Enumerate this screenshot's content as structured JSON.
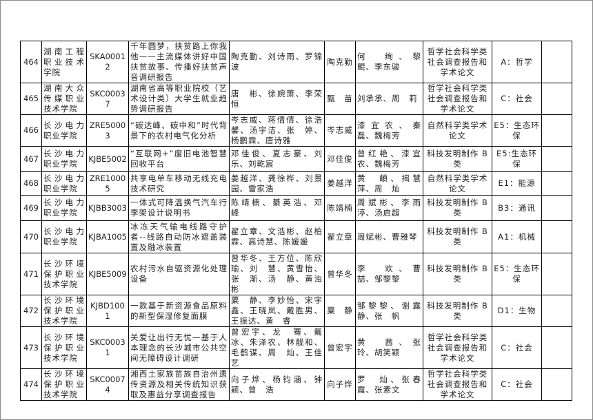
{
  "rows": [
    {
      "no": "464",
      "school": "湖南工程职业技术学院",
      "code": "SKA00012",
      "title": "千年圆梦，扶贫路上你我他——主流媒体讲好中国扶贫故事、传播好扶贫声音调研报告",
      "members": "陶克勤、刘诗雨、罗锦波",
      "leader": "陶克勤",
      "advisors": "何　绚、黎　鲲、李东骏",
      "category": "哲学社会科学类社会调查报告和学术论文",
      "subject": "A：哲学",
      "note": ""
    },
    {
      "no": "465",
      "school": "湖南大众传媒职业技术学院",
      "code": "SKC00037",
      "title": "湖南省高等职业院校（艺术设计类）大学生就业趋势调研报告",
      "members": "唐　彬、徐婉箫、李荣恒",
      "leader": "甄　苗",
      "advisors": "刘承承、周　莉",
      "category": "哲学社会科学类社会调查报告和学术论文",
      "subject": "C：社会",
      "note": ""
    },
    {
      "no": "466",
      "school": "长沙电力职业学院",
      "code": "ZRE50003",
      "title": "“碳达峰、碳中和”时代背景下的农村电气化分析",
      "members": "岑志威、蒋倩倩、徐浩馨、汤宇洁、张　婷、杨鹏霖、唐诗雅",
      "leader": "岑志威",
      "advisors": "漆宜农、秦　磊、魏梅芳",
      "category": "自然科学类学术论文",
      "subject": "E5：生态环保",
      "note": ""
    },
    {
      "no": "467",
      "school": "长沙电力职业学院",
      "code": "KJBE5002",
      "title": "“互联网+”废旧电池智慧回收平台",
      "members": "邓佳俊、夏志豪、刘　乐、刘乾宸",
      "leader": "邓佳俊",
      "advisors": "曾红艳、漆宜农、魏梅芳",
      "category": "科技发明制作 B 类",
      "subject": "E5:生态环保",
      "note": ""
    },
    {
      "no": "468",
      "school": "长沙电力职业学院",
      "code": "ZRE10005",
      "title": "共享电单车移动无线充电技术研究",
      "members": "姜越洋、龚徐桦、刘景园、雷家浩",
      "leader": "姜越洋",
      "advisors": "黄　頔、揭慧萍、周　灿",
      "category": "自然科学类学术论文",
      "subject": "E1：能源",
      "note": ""
    },
    {
      "no": "469",
      "school": "长沙电力职业学院",
      "code": "KJBB3003",
      "title": "一体式可降温换气汽车行李架设计说明书",
      "members": "陈靖楠、綦英浩、邓　峰",
      "leader": "陈靖楠",
      "advisors": "周斌彬、李雨渟、汤启超",
      "category": "科技发明制作 B 类",
      "subject": "B3：通讯",
      "note": ""
    },
    {
      "no": "470",
      "school": "长沙电力职业学院",
      "code": "KJBA1005",
      "title": "冰冻天气输电线路守护者--线路自动防冰遮盖装置及融冰装置",
      "members": "翟立章、文浩彬、赵柏霖、高诗慧、陈媛媛",
      "leader": "翟立章",
      "advisors": "周斌彬、曹雅琴",
      "category": "科技发明制作 B 类",
      "subject": "A1：机械",
      "note": ""
    },
    {
      "no": "471",
      "school": "长沙环境保护职业技术学院",
      "code": "KJBE5009",
      "title": "农村污水自驱资源化处理设备",
      "members": "曾华冬、王方位、陈欣瑜、刘　慧、黄雪怡、张　渐、汤　静、黄浊彬",
      "leader": "曾华冬",
      "advisors": "李　欢、曹　喆、邹黎黎",
      "category": "科技发明制作 B 类",
      "subject": "E5：生态环保",
      "note": ""
    },
    {
      "no": "472",
      "school": "长沙环境保护职业技术学院",
      "code": "KJBD1001",
      "title": "一款基于新资源食品原料的新型保湿修复面膜",
      "members": "粟　静、李妙怡、宋宇鑫、王晓岚、戴胜男、王振达、黄　睿",
      "leader": "粟　静",
      "advisors": "邹黎黎、谢露静、张　帆",
      "category": "科技发明制作 B 类",
      "subject": "D1：生物",
      "note": ""
    },
    {
      "no": "473",
      "school": "长沙环境保护职业技术学院",
      "code": "SKC00031",
      "title": "关爱让出行无忧—基于人本理念的长沙城市公共空间无障碍设计调研",
      "members": "曾宏宇、龙　骞、戴　冰、朱泽农、林靓和、毛鹤谋、周　灿、王佳艺",
      "leader": "曾宏宇",
      "advisors": "黄　茜、张　玲、胡笑颖",
      "category": "哲学社会科学类社会调查报告和学术论文",
      "subject": "C：社会",
      "note": ""
    },
    {
      "no": "474",
      "school": "长沙环境保护职业技术学院",
      "code": "SKC00074",
      "title": "湘西土家族苗族自治州遗传资源及相关传统知识获取及惠益分享调查报告",
      "members": "向子烨、杨钧涵、钟　颖、曾　浩",
      "leader": "向子烨",
      "advisors": "罗　灿、张春霞、张素文",
      "category": "哲学社会科学类社会调查报告和学术论文",
      "subject": "C：社会",
      "note": ""
    }
  ]
}
